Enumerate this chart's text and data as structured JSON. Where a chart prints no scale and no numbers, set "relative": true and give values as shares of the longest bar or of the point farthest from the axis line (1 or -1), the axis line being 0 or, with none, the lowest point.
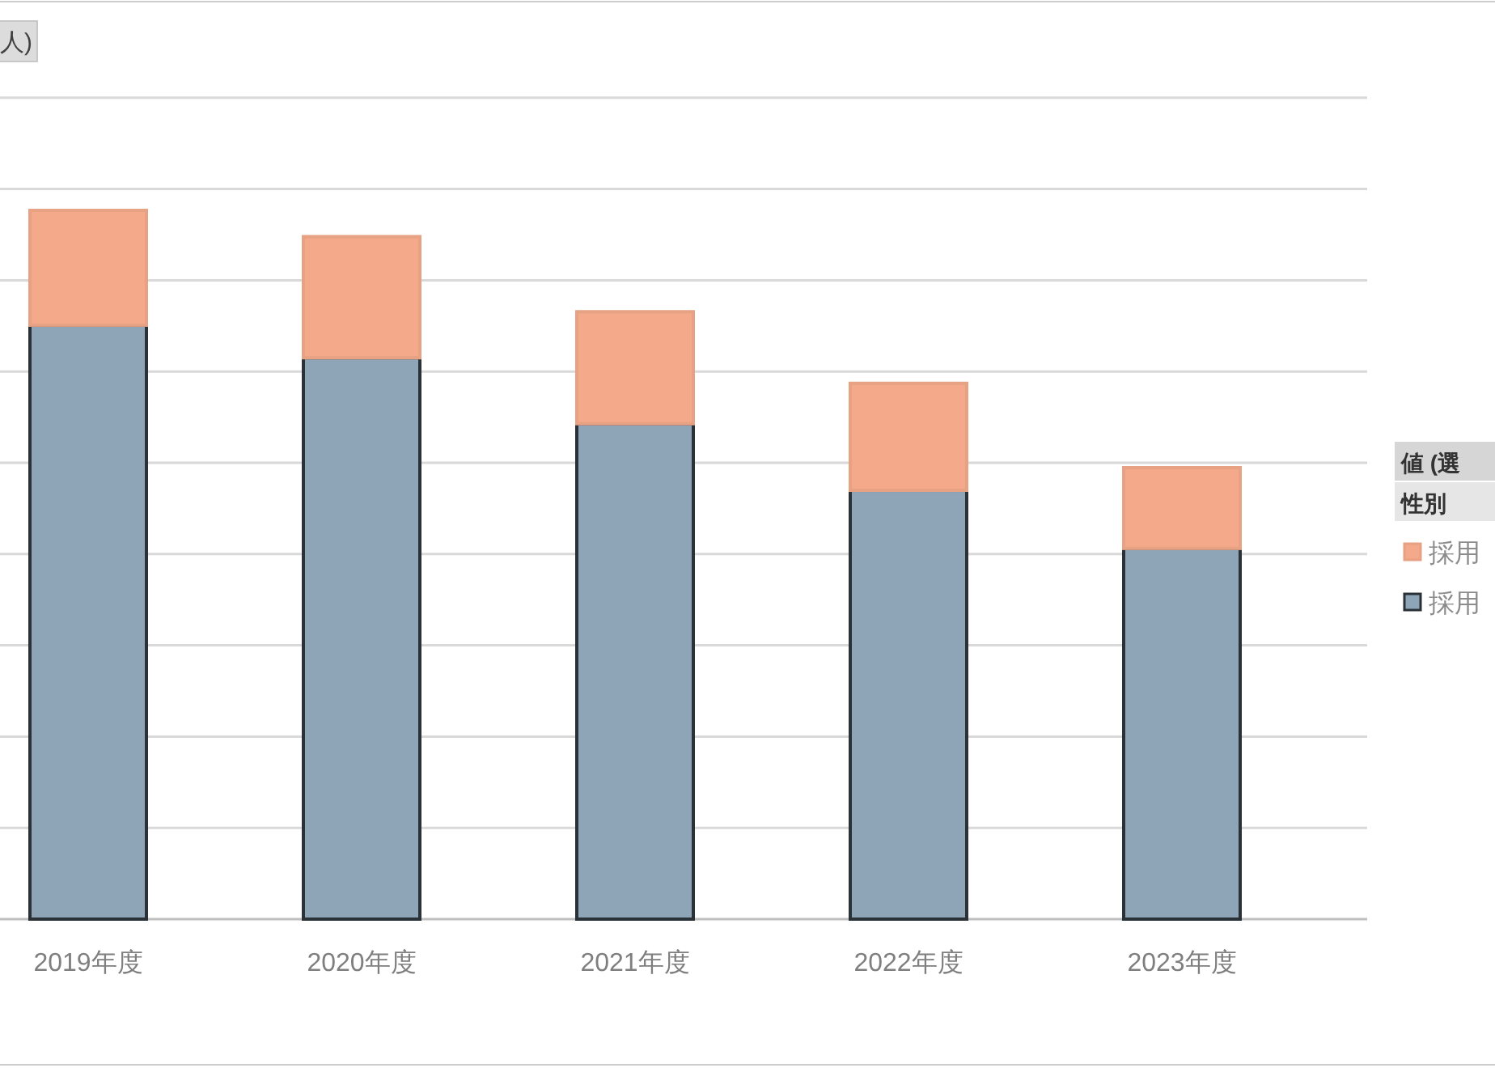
{
  "chart_data": {
    "type": "bar",
    "title": "人)",
    "stacked": true,
    "relative": true,
    "grid": "y",
    "legend": "right",
    "legend_title": "値 (選",
    "annotations": [
      "性別"
    ],
    "categories": [
      "2019年度",
      "2020年度",
      "2021年度",
      "2022年度",
      "2023年度"
    ],
    "series": [
      {
        "name": "採用",
        "color": "#8ea5b8",
        "values": [
          0.838,
          0.792,
          0.699,
          0.605,
          0.523
        ]
      },
      {
        "name": "採用",
        "color": "#f3a98a",
        "values": [
          0.162,
          0.171,
          0.158,
          0.151,
          0.114
        ]
      }
    ]
  }
}
